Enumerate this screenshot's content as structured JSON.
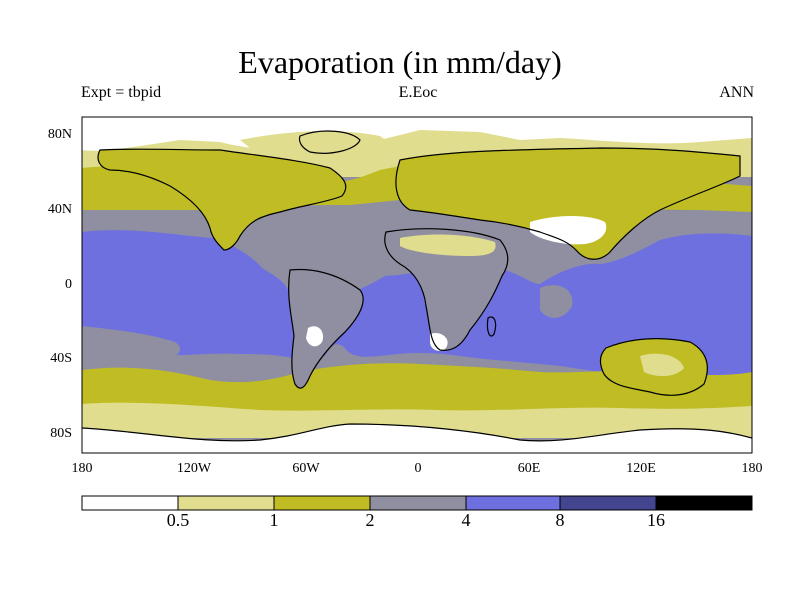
{
  "map": {
    "title": "Evaporation (in mm/day)",
    "experiment": "Expt = tbpid",
    "dataset": "E.Eoc",
    "season": "ANN",
    "lat_ticks": [
      "80N",
      "40N",
      "0",
      "40S",
      "80S"
    ],
    "lon_ticks": [
      "180",
      "120W",
      "60W",
      "0",
      "60E",
      "120E",
      "180"
    ],
    "colors": {
      "c0": "#ffffff",
      "c1": "#e0dd8e",
      "c2": "#bfbd23",
      "c3": "#8f8fa1",
      "c4": "#6e70e0",
      "c5": "#43458e",
      "c6": "#000000",
      "coast": "#000000"
    }
  },
  "colorbar": {
    "levels": [
      "0.5",
      "1",
      "2",
      "4",
      "8",
      "16"
    ],
    "colors": [
      "#ffffff",
      "#e0dd8e",
      "#bfbd23",
      "#8f8fa1",
      "#6e70e0",
      "#43458e",
      "#000000"
    ]
  }
}
